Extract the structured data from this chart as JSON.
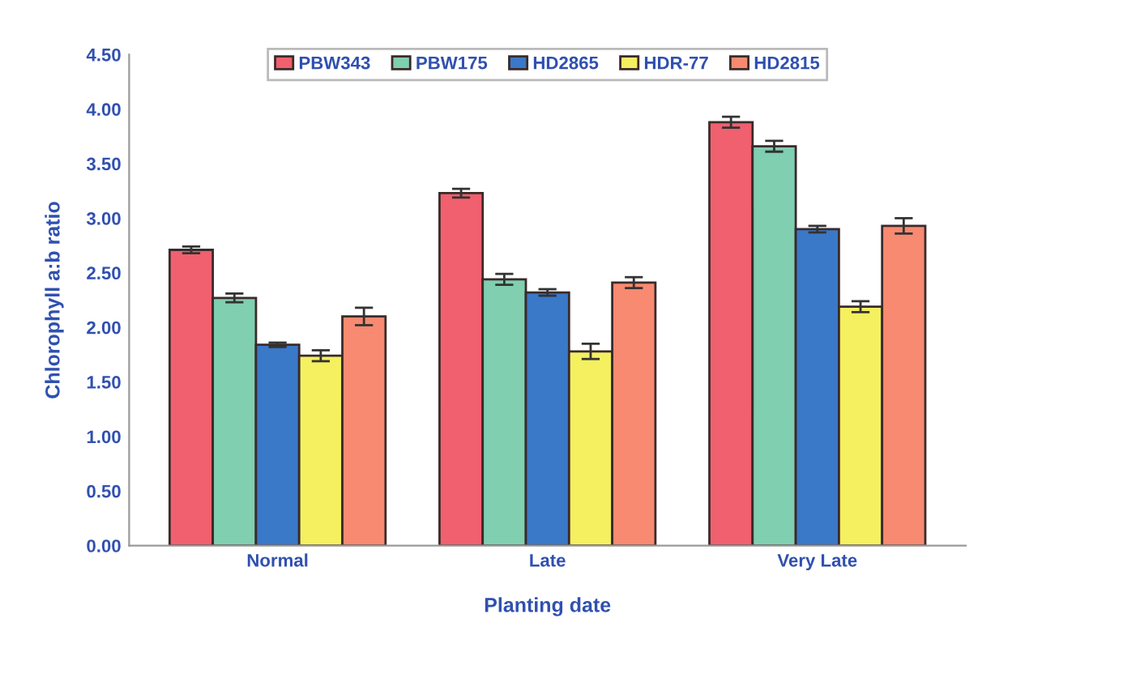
{
  "chart_data": {
    "type": "bar",
    "xlabel": "Planting date",
    "ylabel": "Chlorophyll a:b ratio",
    "categories": [
      "Normal",
      "Late",
      "Very Late"
    ],
    "series": [
      {
        "name": "PBW343",
        "color": "#f0606e",
        "values": [
          2.71,
          3.23,
          3.88
        ],
        "errors": [
          0.03,
          0.04,
          0.05
        ]
      },
      {
        "name": "PBW175",
        "color": "#7fcfb0",
        "values": [
          2.27,
          2.44,
          3.66
        ],
        "errors": [
          0.04,
          0.05,
          0.05
        ]
      },
      {
        "name": "HD2865",
        "color": "#3a78c8",
        "values": [
          1.84,
          2.32,
          2.9
        ],
        "errors": [
          0.02,
          0.03,
          0.03
        ]
      },
      {
        "name": "HDR-77",
        "color": "#f4f060",
        "values": [
          1.74,
          1.78,
          2.19
        ],
        "errors": [
          0.05,
          0.07,
          0.05
        ]
      },
      {
        "name": "HD2815",
        "color": "#f78a70",
        "values": [
          2.1,
          2.41,
          2.93
        ],
        "errors": [
          0.08,
          0.05,
          0.07
        ]
      }
    ],
    "ylim": [
      0,
      4.5
    ],
    "yticks": [
      {
        "value": 0,
        "label": "0.00"
      },
      {
        "value": 0.5,
        "label": "0.50"
      },
      {
        "value": 1,
        "label": "1.00"
      },
      {
        "value": 1.5,
        "label": "1.50"
      },
      {
        "value": 2,
        "label": "2.00"
      },
      {
        "value": 2.5,
        "label": "2.50"
      },
      {
        "value": 3,
        "label": "3.00"
      },
      {
        "value": 3.5,
        "label": "3.50"
      },
      {
        "value": 4,
        "label": "4.00"
      },
      {
        "value": 4.5,
        "label": "4.50"
      }
    ],
    "legend": "top",
    "grid": false
  }
}
